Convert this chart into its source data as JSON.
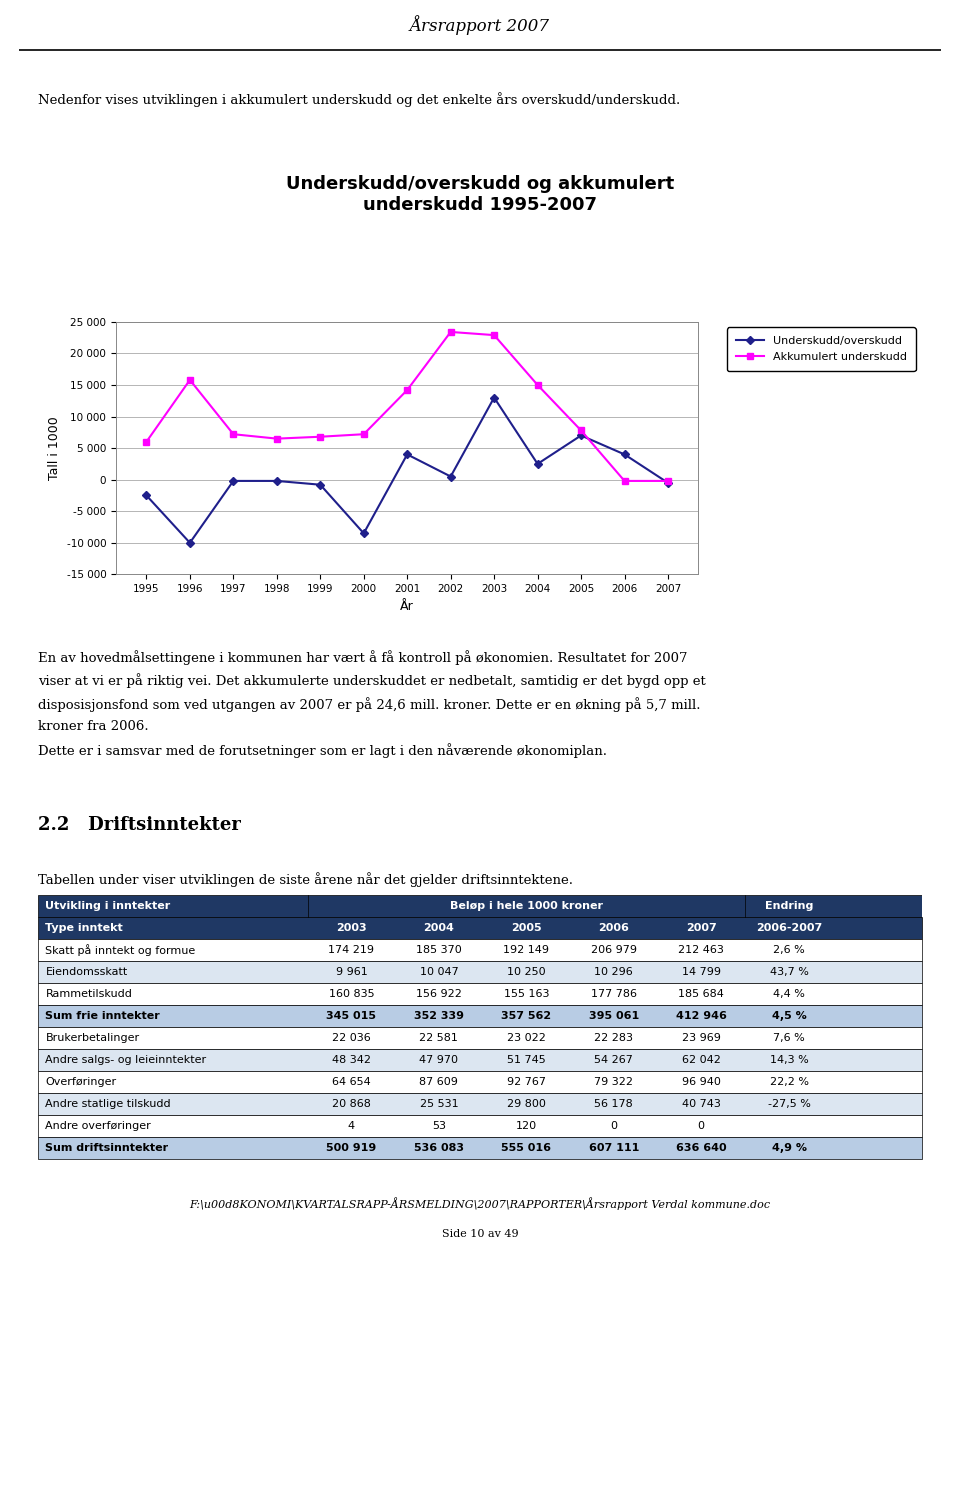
{
  "header_title": "Årsrapport 2007",
  "intro_text": "Nedenfor vises utviklingen i akkumulert underskudd og det enkelte års overskudd/underskudd.",
  "chart_title": "Underskudd/overskudd og akkumulert\nunderskudd 1995-2007",
  "years": [
    1995,
    1996,
    1997,
    1998,
    1999,
    2000,
    2001,
    2002,
    2003,
    2004,
    2005,
    2006,
    2007
  ],
  "underskudd_overskudd": [
    -2500,
    -10000,
    -200,
    -200,
    -800,
    -8500,
    4000,
    500,
    13000,
    2500,
    7000,
    4000,
    -500
  ],
  "akkumulert_underskudd": [
    6000,
    15800,
    7200,
    6500,
    6800,
    7200,
    14200,
    23400,
    22900,
    15000,
    7800,
    -200,
    -200
  ],
  "ylabel": "Tall i 1000",
  "xlabel": "År",
  "ylim": [
    -15000,
    25000
  ],
  "yticks": [
    -15000,
    -10000,
    -5000,
    0,
    5000,
    10000,
    15000,
    20000,
    25000
  ],
  "ytick_labels": [
    "-15 000",
    "-10 000",
    "-5 000",
    "0",
    "5 000",
    "10 000",
    "15 000",
    "20 000",
    "25 000"
  ],
  "line1_color": "#1F1F8B",
  "line2_color": "#FF00FF",
  "line1_label": "Underskudd/overskudd",
  "line2_label": "Akkumulert underskudd",
  "body_lines": [
    "En av hovedmålsettingene i kommunen har vært å få kontroll på økonomien. Resultatet for 2007",
    "viser at vi er på riktig vei. Det akkumulerte underskuddet er nedbetalt, samtidig er det bygd opp et",
    "disposisjonsfond som ved utgangen av 2007 er på 24,6 mill. kroner. Dette er en økning på 5,7 mill.",
    "kroner fra 2006.",
    "Dette er i samsvar med de forutsetninger som er lagt i den nåværende økonomiplan."
  ],
  "section_title": "2.2   Driftsinntekter",
  "table_intro": "Tabellen under viser utviklingen de siste årene når det gjelder driftsinntektene.",
  "table_col1_header": "Utvikling i inntekter",
  "table_mid_header": "Beløp i hele 1000 kroner",
  "table_end_header": "Endring",
  "table_subheaders": [
    "Type inntekt",
    "2003",
    "2004",
    "2005",
    "2006",
    "2007",
    "2006-2007"
  ],
  "table_rows": [
    [
      "Skatt på inntekt og formue",
      "174 219",
      "185 370",
      "192 149",
      "206 979",
      "212 463",
      "2,6 %"
    ],
    [
      "Eiendomsskatt",
      "9 961",
      "10 047",
      "10 250",
      "10 296",
      "14 799",
      "43,7 %"
    ],
    [
      "Rammetilskudd",
      "160 835",
      "156 922",
      "155 163",
      "177 786",
      "185 684",
      "4,4 %"
    ],
    [
      "Sum frie inntekter",
      "345 015",
      "352 339",
      "357 562",
      "395 061",
      "412 946",
      "4,5 %"
    ],
    [
      "Brukerbetalinger",
      "22 036",
      "22 581",
      "23 022",
      "22 283",
      "23 969",
      "7,6 %"
    ],
    [
      "Andre salgs- og leieinntekter",
      "48 342",
      "47 970",
      "51 745",
      "54 267",
      "62 042",
      "14,3 %"
    ],
    [
      "Overføringer",
      "64 654",
      "87 609",
      "92 767",
      "79 322",
      "96 940",
      "22,2 %"
    ],
    [
      "Andre statlige tilskudd",
      "20 868",
      "25 531",
      "29 800",
      "56 178",
      "40 743",
      "-27,5 %"
    ],
    [
      "Andre overføringer",
      "4",
      "53",
      "120",
      "0",
      "0",
      ""
    ],
    [
      "Sum driftsinntekter",
      "500 919",
      "536 083",
      "555 016",
      "607 111",
      "636 640",
      "4,9 %"
    ]
  ],
  "bold_rows": [
    3,
    9
  ],
  "footer_text": "F:\\u00d8KONOMI\\KVARTALSRAPP-ÅRSMELDING\\2007\\RAPPORTER\\Årsrapport Verdal kommune.doc",
  "footer_page": "Side 10 av 49",
  "header_color": "#1F3864",
  "alt_row_color": "#DCE6F1",
  "sum_row_color": "#B8CCE4"
}
